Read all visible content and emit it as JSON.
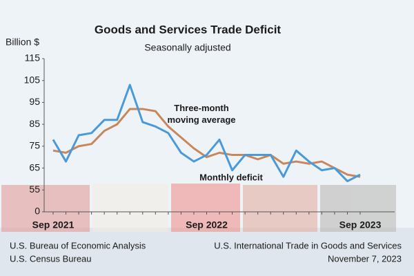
{
  "chart_data": {
    "type": "line",
    "title": "Goods and Services Trade Deficit",
    "subtitle": "Seasonally adjusted",
    "y_label": "Billion $",
    "categories": [
      "Sep 2021",
      null,
      null,
      null,
      null,
      null,
      null,
      null,
      null,
      null,
      null,
      null,
      "Sep 2022",
      null,
      null,
      null,
      null,
      null,
      null,
      null,
      null,
      null,
      null,
      null,
      "Sep 2023"
    ],
    "series": [
      {
        "name": "Monthly deficit",
        "color": "#4a9ad8",
        "values": [
          78,
          68,
          80,
          81,
          87,
          87,
          103,
          86,
          84,
          81,
          72,
          68,
          71,
          78,
          64,
          71,
          71,
          71,
          61,
          73,
          68,
          64,
          65,
          59,
          62
        ]
      },
      {
        "name": "Three-month moving average",
        "color": "#c8875a",
        "values": [
          73,
          72,
          75,
          76,
          82,
          85,
          92,
          92,
          91,
          84,
          79,
          74,
          70,
          72,
          71,
          71,
          69,
          71,
          67,
          68,
          67,
          68,
          65,
          62,
          61
        ]
      }
    ],
    "ylim": [
      0,
      115
    ],
    "yticks": [
      0,
      55,
      65,
      75,
      85,
      95,
      105,
      115
    ],
    "axis_break": true,
    "grid": false,
    "series_labels": [
      "Monthly deficit",
      "Three-month\nmoving average"
    ],
    "source_left": [
      "U.S. Bureau of Economic Analysis",
      "U.S. Census Bureau"
    ],
    "source_right": [
      "U.S. International Trade in Goods and Services",
      "November 7, 2023"
    ]
  }
}
